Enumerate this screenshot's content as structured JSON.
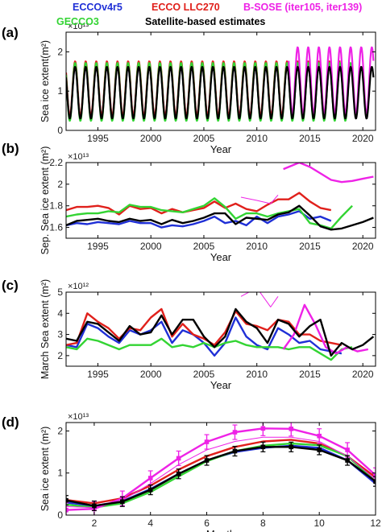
{
  "legend": [
    {
      "label": "ECCOv4r5",
      "color": "#1f2fd6"
    },
    {
      "label": "ECCO LLC270",
      "color": "#e0201b"
    },
    {
      "label": "B-SOSE (iter105, iter139)",
      "color": "#ee22e6"
    },
    {
      "label": "GECCO3",
      "color": "#33d433"
    },
    {
      "label": "Satellite-based estimates",
      "color": "#000000"
    }
  ],
  "chart_data": [
    {
      "panel_label": "(a)",
      "type": "line",
      "ylabel": "Sea ice extent(m²)",
      "xlabel": "Year",
      "exponent": "×10¹³",
      "xlim": [
        1992,
        2021.2
      ],
      "ylim": [
        0,
        2.5
      ],
      "yticks": [
        0,
        1,
        2
      ],
      "xticks": [
        1995,
        2000,
        2005,
        2010,
        2015,
        2020
      ],
      "grid": false,
      "series": [
        {
          "name": "ECCOv4r5",
          "color": "#1f2fd6",
          "start": 1992,
          "end": 2017.5,
          "min": 0.34,
          "max": 1.66
        },
        {
          "name": "ECCO LLC270",
          "color": "#e0201b",
          "start": 1992,
          "end": 2017.9,
          "min": 0.36,
          "max": 1.76
        },
        {
          "name": "GECCO3",
          "color": "#33d433",
          "start": 1992,
          "end": 2019,
          "min": 0.24,
          "max": 1.72
        },
        {
          "name": "B-SOSE (iter105, iter139)",
          "color": "#ee22e6",
          "start": 2013,
          "end": 2021,
          "min": 0.42,
          "max": 2.12
        },
        {
          "name": "Satellite-based estimates",
          "color": "#000000",
          "start": 1992,
          "end": 2021,
          "min": 0.3,
          "max": 1.62
        }
      ]
    },
    {
      "panel_label": "(b)",
      "type": "line",
      "ylabel": "Sep. Sea ice extent (m²)",
      "xlabel": "Year",
      "exponent": "×10¹³",
      "xlim": [
        1992,
        2021.2
      ],
      "ylim": [
        1.5,
        2.2
      ],
      "yticks": [
        1.6,
        1.8,
        2,
        2.2
      ],
      "xticks": [
        1995,
        2000,
        2005,
        2010,
        2015,
        2020
      ],
      "grid": false,
      "series": [
        {
          "name": "ECCOv4r5",
          "color": "#1f2fd6",
          "x": [
            1992,
            1993,
            1994,
            1995,
            1996,
            1997,
            1998,
            1999,
            2000,
            2001,
            2002,
            2003,
            2004,
            2005,
            2006,
            2007,
            2008,
            2009,
            2010,
            2011,
            2012,
            2013,
            2014,
            2015,
            2016,
            2017
          ],
          "y": [
            1.62,
            1.64,
            1.63,
            1.65,
            1.64,
            1.63,
            1.66,
            1.64,
            1.64,
            1.6,
            1.62,
            1.61,
            1.63,
            1.66,
            1.7,
            1.64,
            1.66,
            1.62,
            1.7,
            1.64,
            1.7,
            1.72,
            1.75,
            1.68,
            1.7,
            1.66
          ]
        },
        {
          "name": "ECCO LLC270",
          "color": "#e0201b",
          "x": [
            1992,
            1993,
            1994,
            1995,
            1996,
            1997,
            1998,
            1999,
            2000,
            2001,
            2002,
            2003,
            2004,
            2005,
            2006,
            2007,
            2008,
            2009,
            2010,
            2011,
            2012,
            2013,
            2014,
            2015,
            2016,
            2017
          ],
          "y": [
            1.76,
            1.79,
            1.79,
            1.8,
            1.78,
            1.72,
            1.8,
            1.77,
            1.78,
            1.73,
            1.77,
            1.74,
            1.76,
            1.78,
            1.84,
            1.78,
            1.82,
            1.77,
            1.75,
            1.81,
            1.86,
            1.86,
            1.92,
            1.84,
            1.78,
            1.76
          ]
        },
        {
          "name": "GECCO3",
          "color": "#33d433",
          "x": [
            1992,
            1993,
            1994,
            1995,
            1996,
            1997,
            1998,
            1999,
            2000,
            2001,
            2002,
            2003,
            2004,
            2005,
            2006,
            2007,
            2008,
            2009,
            2010,
            2011,
            2012,
            2013,
            2014,
            2015,
            2016,
            2017,
            2018,
            2019
          ],
          "y": [
            1.7,
            1.72,
            1.73,
            1.73,
            1.75,
            1.74,
            1.81,
            1.79,
            1.79,
            1.76,
            1.75,
            1.74,
            1.77,
            1.8,
            1.87,
            1.79,
            1.68,
            1.73,
            1.73,
            1.7,
            1.73,
            1.75,
            1.77,
            1.64,
            1.62,
            1.59,
            1.7,
            1.8
          ]
        },
        {
          "name": "B-SOSE iter105",
          "color": "#ee22e6",
          "thin": true,
          "x": [
            2008.5,
            2010,
            2011.3,
            2012
          ],
          "y": [
            1.88,
            1.85,
            1.82,
            1.9
          ]
        },
        {
          "name": "B-SOSE iter139",
          "color": "#ee22e6",
          "x": [
            2012.5,
            2014,
            2015,
            2016,
            2017,
            2018,
            2019,
            2020,
            2021
          ],
          "y": [
            2.14,
            2.2,
            2.16,
            2.1,
            2.04,
            2.02,
            2.03,
            2.05,
            2.07
          ]
        },
        {
          "name": "Satellite-based estimates",
          "color": "#000000",
          "x": [
            1992,
            1993,
            1994,
            1995,
            1996,
            1997,
            1998,
            1999,
            2000,
            2001,
            2002,
            2003,
            2004,
            2005,
            2006,
            2007,
            2008,
            2009,
            2010,
            2011,
            2012,
            2013,
            2014,
            2015,
            2016,
            2017,
            2018,
            2019,
            2020,
            2021
          ],
          "y": [
            1.62,
            1.66,
            1.67,
            1.68,
            1.66,
            1.65,
            1.68,
            1.66,
            1.67,
            1.63,
            1.67,
            1.64,
            1.66,
            1.69,
            1.73,
            1.73,
            1.63,
            1.69,
            1.68,
            1.67,
            1.72,
            1.74,
            1.8,
            1.71,
            1.61,
            1.58,
            1.59,
            1.62,
            1.65,
            1.69
          ]
        }
      ]
    },
    {
      "panel_label": "(c)",
      "type": "line",
      "ylabel": "March Sea extent (m²)",
      "xlabel": "Year",
      "exponent": "×10¹²",
      "xlim": [
        1992,
        2021.2
      ],
      "ylim": [
        1.5,
        5
      ],
      "yticks": [
        2,
        3,
        4,
        5
      ],
      "xticks": [
        1995,
        2000,
        2005,
        2010,
        2015,
        2020
      ],
      "grid": false,
      "series": [
        {
          "name": "ECCOv4r5",
          "color": "#1f2fd6",
          "x": [
            1992,
            1993,
            1994,
            1995,
            1996,
            1997,
            1998,
            1999,
            2000,
            2001,
            2002,
            2003,
            2004,
            2005,
            2006,
            2007,
            2008,
            2009,
            2010,
            2011,
            2012,
            2013,
            2014,
            2015,
            2016,
            2017,
            2018
          ],
          "y": [
            2.5,
            2.4,
            3.5,
            3.3,
            2.9,
            2.6,
            3.2,
            3.0,
            3.2,
            3.6,
            2.6,
            3.2,
            3.0,
            2.6,
            2.0,
            2.6,
            3.8,
            2.9,
            2.5,
            2.3,
            3.3,
            3.0,
            2.6,
            2.7,
            2.3,
            2.2,
            2.1
          ]
        },
        {
          "name": "ECCO LLC270",
          "color": "#e0201b",
          "x": [
            1992,
            1993,
            1994,
            1995,
            1996,
            1997,
            1998,
            1999,
            2000,
            2001,
            2002,
            2003,
            2004,
            2005,
            2006,
            2007,
            2008,
            2009,
            2010,
            2011,
            2012,
            2013,
            2014,
            2015,
            2016,
            2017,
            2018
          ],
          "y": [
            2.5,
            2.6,
            4.0,
            3.6,
            3.3,
            2.8,
            3.3,
            3.2,
            3.8,
            4.2,
            2.9,
            3.5,
            3.0,
            2.8,
            2.5,
            3.1,
            4.1,
            3.5,
            3.4,
            3.2,
            3.7,
            3.6,
            3.0,
            3.0,
            2.7,
            2.6,
            2.5
          ]
        },
        {
          "name": "GECCO3",
          "color": "#33d433",
          "x": [
            1992,
            1993,
            1994,
            1995,
            1996,
            1997,
            1998,
            1999,
            2000,
            2001,
            2002,
            2003,
            2004,
            2005,
            2006,
            2007,
            2008,
            2009,
            2010,
            2011,
            2012,
            2013,
            2014,
            2015,
            2016,
            2017,
            2018,
            2019
          ],
          "y": [
            2.4,
            2.3,
            2.8,
            2.7,
            2.5,
            2.3,
            2.5,
            2.5,
            2.5,
            2.8,
            2.4,
            2.5,
            2.4,
            2.6,
            2.4,
            2.6,
            2.7,
            2.5,
            2.4,
            2.4,
            2.4,
            2.3,
            2.4,
            2.4,
            2.1,
            1.8,
            2.3,
            2.4
          ]
        },
        {
          "name": "B-SOSE iter105",
          "color": "#ee22e6",
          "thin": true,
          "x": [
            2008.5,
            2010,
            2011.3,
            2012
          ],
          "y": [
            4.8,
            5.2,
            4.3,
            4.8
          ]
        },
        {
          "name": "B-SOSE iter139",
          "color": "#ee22e6",
          "x": [
            2012.5,
            2013.5,
            2014.5,
            2015.5,
            2016.5,
            2017.5,
            2018.5,
            2019.5,
            2020.5
          ],
          "y": [
            2.3,
            3.0,
            4.4,
            3.5,
            2.4,
            2.1,
            2.4,
            2.2,
            2.3
          ]
        },
        {
          "name": "Satellite-based estimates",
          "color": "#000000",
          "x": [
            1992,
            1993,
            1994,
            1995,
            1996,
            1997,
            1998,
            1999,
            2000,
            2001,
            2002,
            2003,
            2004,
            2005,
            2006,
            2007,
            2008,
            2009,
            2010,
            2011,
            2012,
            2013,
            2014,
            2015,
            2016,
            2017,
            2018,
            2019,
            2020,
            2021
          ],
          "y": [
            2.8,
            2.7,
            3.6,
            3.5,
            3.1,
            2.7,
            3.4,
            3.0,
            3.1,
            3.9,
            3.0,
            3.7,
            3.7,
            2.9,
            2.4,
            2.9,
            4.2,
            3.6,
            3.3,
            2.6,
            3.7,
            3.5,
            2.9,
            3.4,
            3.7,
            2.0,
            2.6,
            2.3,
            2.5,
            2.9
          ]
        }
      ]
    },
    {
      "panel_label": "(d)",
      "type": "line",
      "ylabel": "Sea ice extent (m²)",
      "xlabel": "Month",
      "exponent": "×10¹³",
      "xlim": [
        1,
        12
      ],
      "ylim": [
        0,
        2.2
      ],
      "yticks": [
        0,
        1,
        2
      ],
      "xticks": [
        2,
        4,
        6,
        8,
        10,
        12
      ],
      "grid": false,
      "series": [
        {
          "name": "ECCOv4r5",
          "color": "#1f2fd6",
          "x": [
            1,
            2,
            3,
            4,
            5,
            6,
            7,
            8,
            9,
            10,
            11,
            12
          ],
          "y": [
            0.3,
            0.22,
            0.33,
            0.62,
            0.98,
            1.3,
            1.5,
            1.6,
            1.65,
            1.6,
            1.3,
            0.75
          ]
        },
        {
          "name": "ECCO LLC270",
          "color": "#e0201b",
          "x": [
            1,
            2,
            3,
            4,
            5,
            6,
            7,
            8,
            9,
            10,
            11,
            12
          ],
          "y": [
            0.36,
            0.28,
            0.4,
            0.7,
            1.08,
            1.4,
            1.62,
            1.75,
            1.79,
            1.7,
            1.4,
            0.9
          ]
        },
        {
          "name": "GECCO3",
          "color": "#33d433",
          "x": [
            1,
            2,
            3,
            4,
            5,
            6,
            7,
            8,
            9,
            10,
            11,
            12
          ],
          "y": [
            0.25,
            0.18,
            0.28,
            0.55,
            0.92,
            1.28,
            1.52,
            1.65,
            1.7,
            1.66,
            1.4,
            0.8
          ]
        },
        {
          "name": "B-SOSE iter105",
          "color": "#ee22e6",
          "thin": true,
          "x": [
            1,
            2,
            3,
            4,
            5,
            6,
            7,
            8,
            9,
            10,
            11,
            12
          ],
          "y": [
            0.2,
            0.18,
            0.35,
            0.75,
            1.2,
            1.55,
            1.75,
            1.85,
            1.85,
            1.75,
            1.4,
            0.85
          ]
        },
        {
          "name": "B-SOSE iter139",
          "color": "#ee22e6",
          "errorbars": true,
          "x": [
            1,
            2,
            3,
            4,
            5,
            6,
            7,
            8,
            9,
            10,
            11,
            12
          ],
          "y": [
            0.12,
            0.15,
            0.4,
            0.88,
            1.35,
            1.74,
            1.97,
            2.06,
            2.05,
            1.88,
            1.55,
            0.95
          ]
        },
        {
          "name": "Satellite-based estimates",
          "color": "#000000",
          "errorbars": true,
          "x": [
            1,
            2,
            3,
            4,
            5,
            6,
            7,
            8,
            9,
            10,
            11,
            12
          ],
          "y": [
            0.35,
            0.22,
            0.32,
            0.6,
            0.98,
            1.3,
            1.52,
            1.62,
            1.62,
            1.55,
            1.3,
            0.8
          ]
        }
      ]
    }
  ]
}
